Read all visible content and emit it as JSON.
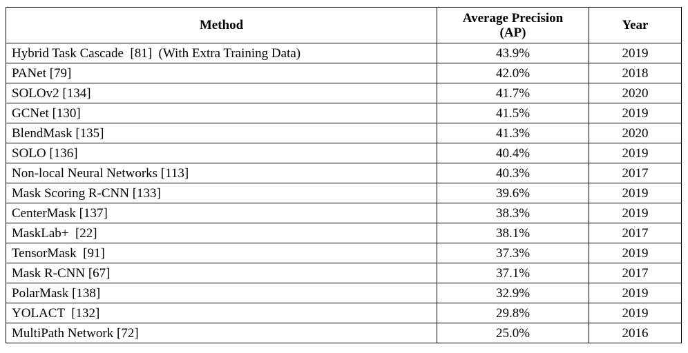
{
  "table": {
    "header": [
      "Method",
      "Average Precision (AP)",
      "Year"
    ],
    "rows": [
      [
        "Hybrid Task Cascade  [81]  (With Extra Training Data)",
        "43.9%",
        "2019"
      ],
      [
        "PANet [79]",
        "42.0%",
        "2018"
      ],
      [
        "SOLOv2 [134]",
        "41.7%",
        "2020"
      ],
      [
        "GCNet [130]",
        "41.5%",
        "2019"
      ],
      [
        "BlendMask [135]",
        "41.3%",
        "2020"
      ],
      [
        "SOLO [136]",
        "40.4%",
        "2019"
      ],
      [
        "Non-local Neural Networks [113]",
        "40.3%",
        "2017"
      ],
      [
        "Mask Scoring R-CNN [133]",
        "39.6%",
        "2019"
      ],
      [
        "CenterMask [137]",
        "38.3%",
        "2019"
      ],
      [
        "MaskLab+  [22]",
        "38.1%",
        "2017"
      ],
      [
        "TensorMask  [91]",
        "37.3%",
        "2019"
      ],
      [
        "Mask R-CNN [67]",
        "37.1%",
        "2017"
      ],
      [
        "PolarMask [138]",
        "32.9%",
        "2019"
      ],
      [
        "YOLACT  [132]",
        "29.8%",
        "2019"
      ],
      [
        "MultiPath Network [72]",
        "25.0%",
        "2016"
      ]
    ]
  }
}
